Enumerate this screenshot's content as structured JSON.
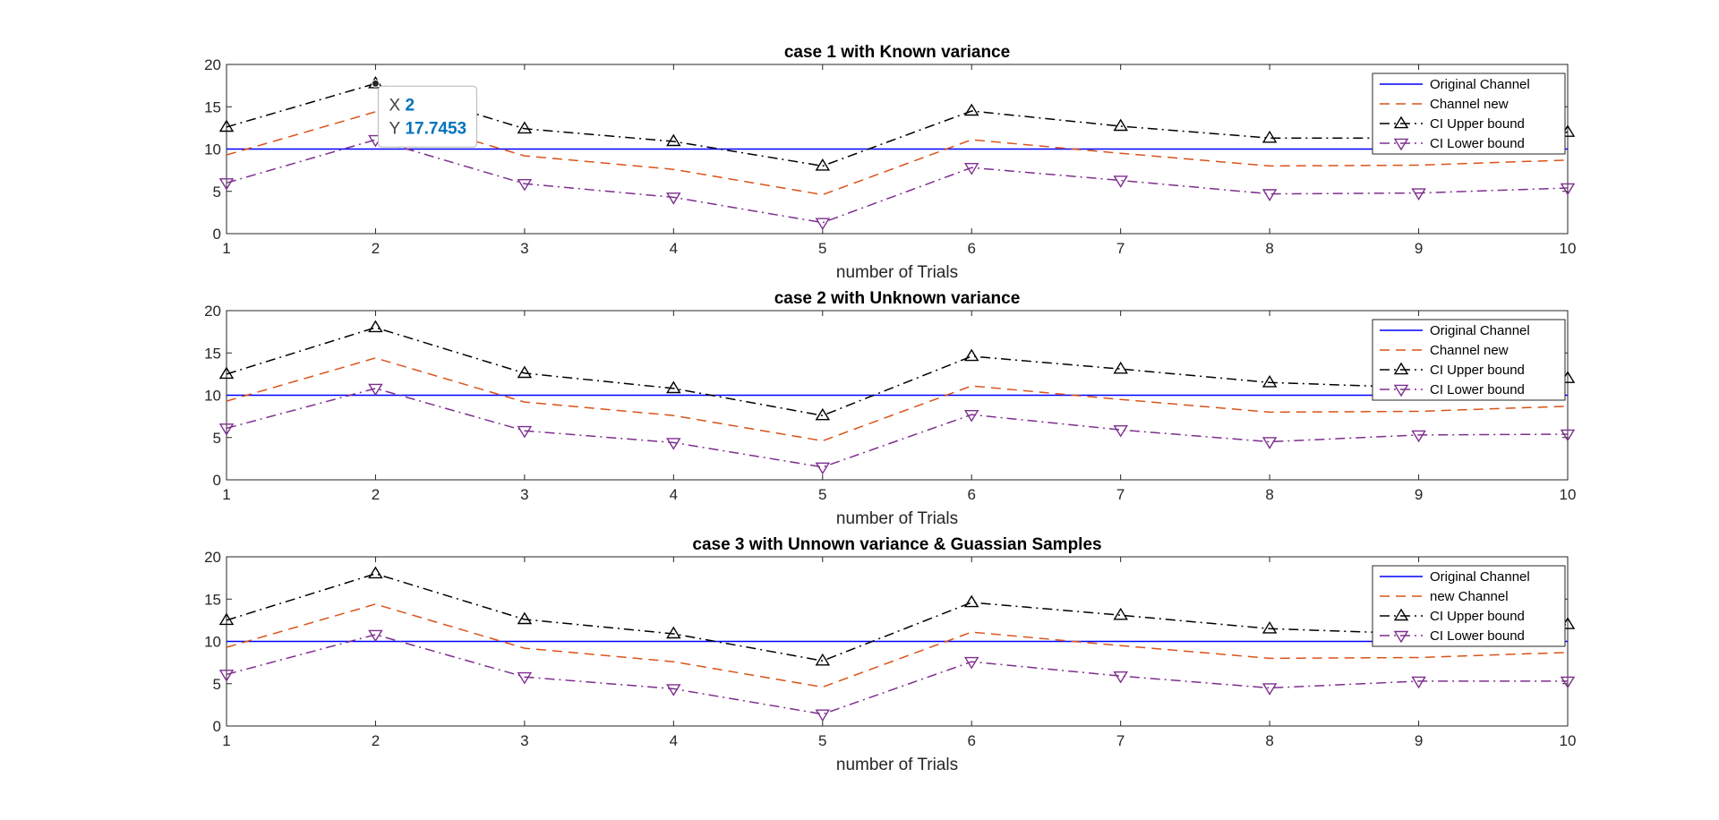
{
  "figure": {
    "background": "#ffffff"
  },
  "chart_data": [
    {
      "type": "line",
      "title": "case 1 with Known variance",
      "xlabel": "number of Trials",
      "ylabel": "",
      "xlim": [
        1,
        10
      ],
      "ylim": [
        0,
        20
      ],
      "xticks": [
        1,
        2,
        3,
        4,
        5,
        6,
        7,
        8,
        9,
        10
      ],
      "yticks": [
        0,
        5,
        10,
        15,
        20
      ],
      "grid": false,
      "legend_location": "top-right",
      "x": [
        1,
        2,
        3,
        4,
        5,
        6,
        7,
        8,
        9,
        10
      ],
      "series": [
        {
          "name": "Original Channel",
          "values": [
            10,
            10,
            10,
            10,
            10,
            10,
            10,
            10,
            10,
            10
          ],
          "color": "#0000FF",
          "line": "solid",
          "marker": "none"
        },
        {
          "name": "Channel new",
          "values": [
            9.3,
            14.4,
            9.2,
            7.6,
            4.6,
            11.1,
            9.5,
            8.0,
            8.1,
            8.7
          ],
          "color": "#D95319",
          "line": "dashed",
          "marker": "none"
        },
        {
          "name": "CI Upper bound",
          "values": [
            12.6,
            17.7453,
            12.4,
            10.9,
            8.0,
            14.5,
            12.7,
            11.3,
            11.3,
            12.0
          ],
          "color": "#000000",
          "line": "dashdot",
          "marker": "triangle-up"
        },
        {
          "name": "CI Lower bound",
          "values": [
            6.0,
            11.1,
            5.9,
            4.3,
            1.3,
            7.8,
            6.3,
            4.7,
            4.8,
            5.4
          ],
          "color": "#7E2F8E",
          "line": "dashdot",
          "marker": "triangle-down"
        }
      ],
      "datatip": {
        "x_label": "X",
        "x_value": "2",
        "y_label": "Y",
        "y_value": "17.7453",
        "x": 2,
        "y": 17.7453
      }
    },
    {
      "type": "line",
      "title": "case 2 with Unknown variance",
      "xlabel": "number of Trials",
      "ylabel": "",
      "xlim": [
        1,
        10
      ],
      "ylim": [
        0,
        20
      ],
      "xticks": [
        1,
        2,
        3,
        4,
        5,
        6,
        7,
        8,
        9,
        10
      ],
      "yticks": [
        0,
        5,
        10,
        15,
        20
      ],
      "grid": false,
      "legend_location": "top-right",
      "x": [
        1,
        2,
        3,
        4,
        5,
        6,
        7,
        8,
        9,
        10
      ],
      "series": [
        {
          "name": "Original Channel",
          "values": [
            10,
            10,
            10,
            10,
            10,
            10,
            10,
            10,
            10,
            10
          ],
          "color": "#0000FF",
          "line": "solid",
          "marker": "none"
        },
        {
          "name": "Channel new",
          "values": [
            9.3,
            14.4,
            9.2,
            7.6,
            4.6,
            11.1,
            9.5,
            8.0,
            8.1,
            8.7
          ],
          "color": "#D95319",
          "line": "dashed",
          "marker": "none"
        },
        {
          "name": "CI Upper bound",
          "values": [
            12.5,
            18.0,
            12.6,
            10.8,
            7.6,
            14.6,
            13.1,
            11.5,
            10.9,
            12.0
          ],
          "color": "#000000",
          "line": "dashdot",
          "marker": "triangle-up"
        },
        {
          "name": "CI Lower bound",
          "values": [
            6.1,
            10.8,
            5.8,
            4.4,
            1.5,
            7.7,
            5.9,
            4.5,
            5.3,
            5.4
          ],
          "color": "#7E2F8E",
          "line": "dashdot",
          "marker": "triangle-down"
        }
      ]
    },
    {
      "type": "line",
      "title": "case 3 with Unnown variance & Guassian Samples",
      "xlabel": "number of Trials",
      "ylabel": "",
      "xlim": [
        1,
        10
      ],
      "ylim": [
        0,
        20
      ],
      "xticks": [
        1,
        2,
        3,
        4,
        5,
        6,
        7,
        8,
        9,
        10
      ],
      "yticks": [
        0,
        5,
        10,
        15,
        20
      ],
      "grid": false,
      "legend_location": "top-right",
      "x": [
        1,
        2,
        3,
        4,
        5,
        6,
        7,
        8,
        9,
        10
      ],
      "series": [
        {
          "name": "Original Channel",
          "values": [
            10,
            10,
            10,
            10,
            10,
            10,
            10,
            10,
            10,
            10
          ],
          "color": "#0000FF",
          "line": "solid",
          "marker": "none"
        },
        {
          "name": "new Channel",
          "values": [
            9.3,
            14.4,
            9.2,
            7.6,
            4.6,
            11.1,
            9.5,
            8.0,
            8.1,
            8.7
          ],
          "color": "#D95319",
          "line": "dashed",
          "marker": "none"
        },
        {
          "name": "CI Upper bound",
          "values": [
            12.5,
            18.0,
            12.6,
            10.9,
            7.7,
            14.6,
            13.1,
            11.5,
            10.9,
            12.0
          ],
          "color": "#000000",
          "line": "dashdot",
          "marker": "triangle-up"
        },
        {
          "name": "CI Lower bound",
          "values": [
            6.1,
            10.8,
            5.8,
            4.4,
            1.4,
            7.6,
            5.9,
            4.5,
            5.3,
            5.3
          ],
          "color": "#7E2F8E",
          "line": "dashdot",
          "marker": "triangle-down"
        }
      ]
    }
  ]
}
